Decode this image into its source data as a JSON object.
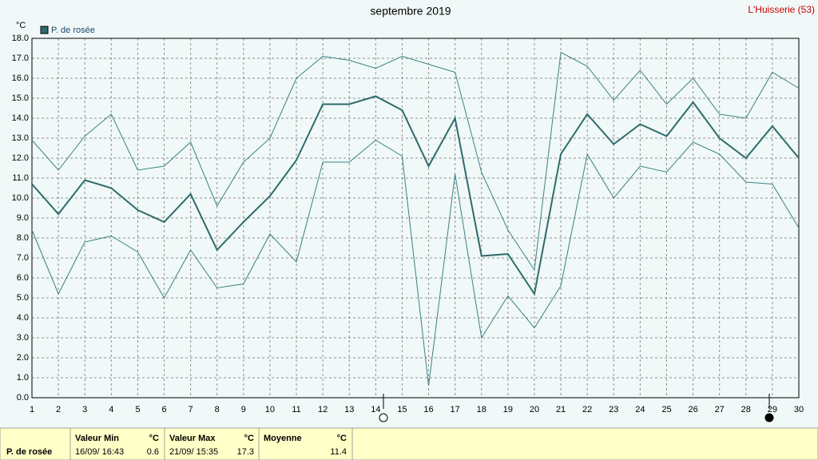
{
  "chart_data": {
    "type": "line",
    "title": "septembre 2019",
    "station": "L'Huisserie (53)",
    "y_unit": "°C",
    "x": [
      1,
      2,
      3,
      4,
      5,
      6,
      7,
      8,
      9,
      10,
      11,
      12,
      13,
      14,
      15,
      16,
      17,
      18,
      19,
      20,
      21,
      22,
      23,
      24,
      25,
      26,
      27,
      28,
      29,
      30
    ],
    "xlim": [
      1,
      30
    ],
    "xticks": [
      1,
      2,
      3,
      4,
      5,
      6,
      7,
      8,
      9,
      10,
      11,
      12,
      13,
      14,
      15,
      16,
      17,
      18,
      19,
      20,
      21,
      22,
      23,
      24,
      25,
      26,
      27,
      28,
      29,
      30
    ],
    "ylim": [
      0,
      18
    ],
    "yticks": [
      {
        "value": 0,
        "label": "0.0"
      },
      {
        "value": 1,
        "label": "1.0"
      },
      {
        "value": 2,
        "label": "2.0"
      },
      {
        "value": 3,
        "label": "3.0"
      },
      {
        "value": 4,
        "label": "4.0"
      },
      {
        "value": 5,
        "label": "5.0"
      },
      {
        "value": 6,
        "label": "6.0"
      },
      {
        "value": 7,
        "label": "7.0"
      },
      {
        "value": 8,
        "label": "8.0"
      },
      {
        "value": 9,
        "label": "9.0"
      },
      {
        "value": 10,
        "label": "10.0"
      },
      {
        "value": 11,
        "label": "11.0"
      },
      {
        "value": 12,
        "label": "12.0"
      },
      {
        "value": 13,
        "label": "13.0"
      },
      {
        "value": 14,
        "label": "14.0"
      },
      {
        "value": 15,
        "label": "15.0"
      },
      {
        "value": 16,
        "label": "16.0"
      },
      {
        "value": 17,
        "label": "17.0"
      },
      {
        "value": 18,
        "label": "18.0"
      }
    ],
    "grid": true,
    "series": [
      {
        "name": "P. de rosée",
        "color": "#2f6b6b",
        "width": 2,
        "values": [
          10.7,
          9.2,
          10.9,
          10.5,
          9.4,
          8.8,
          10.2,
          7.4,
          8.8,
          10.1,
          11.9,
          14.7,
          14.7,
          15.1,
          14.4,
          11.6,
          14.0,
          7.1,
          7.2,
          5.2,
          12.2,
          14.2,
          12.7,
          13.7,
          13.1,
          14.8,
          13.0,
          12.0,
          13.6,
          12.0
        ]
      },
      {
        "color": "#3c8282",
        "width": 1,
        "values": [
          12.9,
          11.4,
          13.1,
          14.2,
          11.4,
          11.6,
          12.8,
          9.6,
          11.8,
          13.0,
          16.0,
          17.1,
          16.9,
          16.5,
          17.1,
          16.7,
          16.3,
          11.3,
          8.4,
          6.4,
          17.3,
          16.6,
          14.9,
          16.4,
          14.7,
          16.0,
          14.2,
          14.0,
          16.3,
          15.5
        ]
      },
      {
        "color": "#3c8282",
        "width": 1,
        "values": [
          8.4,
          5.2,
          7.8,
          8.1,
          7.3,
          5.0,
          7.4,
          5.5,
          5.7,
          8.2,
          6.8,
          11.8,
          11.8,
          12.9,
          12.1,
          0.6,
          11.2,
          3.0,
          5.1,
          3.5,
          5.6,
          12.2,
          10.0,
          11.6,
          11.3,
          12.8,
          12.2,
          10.8,
          10.7,
          8.5
        ]
      }
    ]
  },
  "footer": {
    "row_label": "P. de rosée",
    "columns": [
      {
        "title": "Valeur Min",
        "unit": "°C",
        "date": "16/09/ 16:43",
        "value": 0.6
      },
      {
        "title": "Valeur Max",
        "unit": "°C",
        "date": "21/09/ 15:35",
        "value": 17.3
      },
      {
        "title": "Moyenne",
        "unit": "°C",
        "value": 11.4
      }
    ]
  }
}
